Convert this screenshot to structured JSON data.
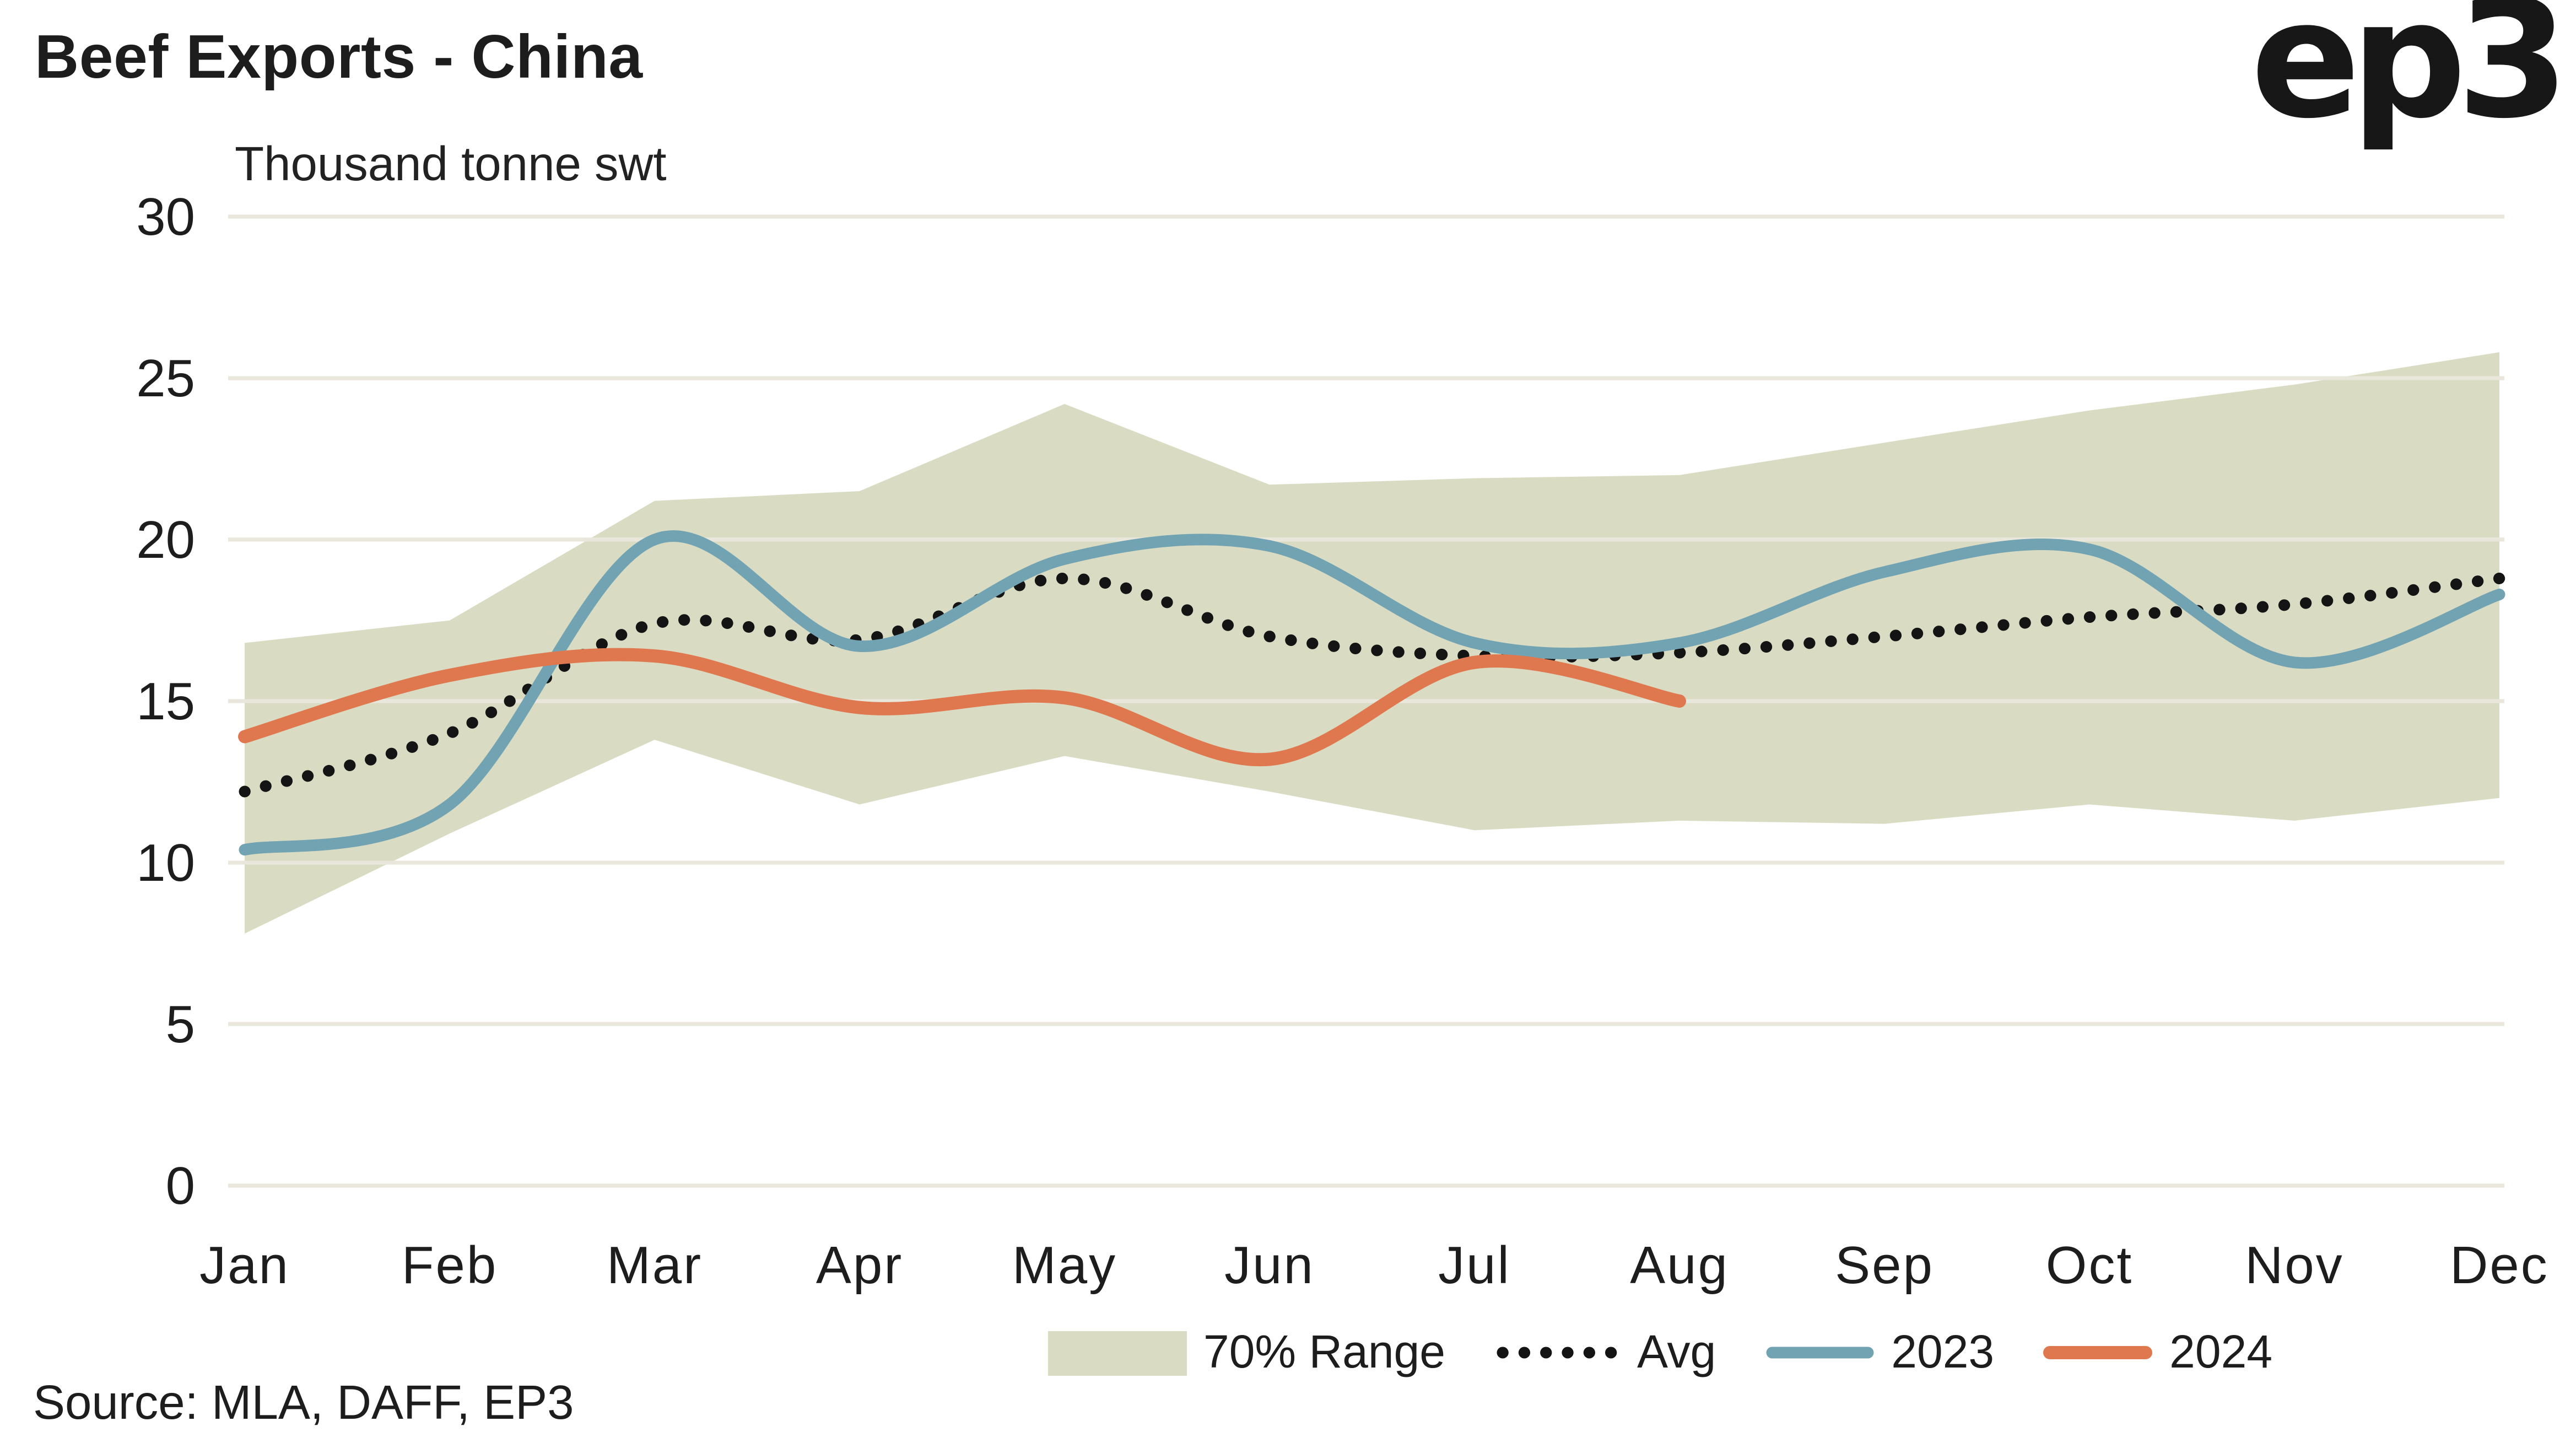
{
  "header": {
    "title": "Beef Exports - China",
    "subtitle": "Thousand tonne swt",
    "logo_text": "ep3"
  },
  "footer": {
    "source": "Source: MLA, DAFF, EP3"
  },
  "legend": {
    "items": [
      {
        "label": "70% Range"
      },
      {
        "label": "Avg"
      },
      {
        "label": "2023"
      },
      {
        "label": "2024"
      }
    ]
  },
  "colors": {
    "background": "#ffffff",
    "gridline": "#e9e6db",
    "text": "#1d1d1d",
    "band": "#d9dcc3",
    "avg": "#141414",
    "series_2023": "#72a3b2",
    "series_2024": "#e0784f"
  },
  "chart_data": {
    "type": "line",
    "title": "Beef Exports - China",
    "ylabel": "Thousand tonne swt",
    "xlabel": "",
    "categories": [
      "Jan",
      "Feb",
      "Mar",
      "Apr",
      "May",
      "Jun",
      "Jul",
      "Aug",
      "Sep",
      "Oct",
      "Nov",
      "Dec"
    ],
    "ylim": [
      0,
      30
    ],
    "y_ticks": [
      0,
      5,
      10,
      15,
      20,
      25,
      30
    ],
    "grid": "horizontal",
    "legend_position": "bottom",
    "band": {
      "name": "70% Range",
      "color": "#d9dcc3",
      "upper": [
        16.8,
        17.5,
        21.2,
        21.5,
        24.2,
        21.7,
        21.9,
        22.0,
        23.0,
        24.0,
        24.8,
        25.8
      ],
      "lower": [
        7.8,
        10.9,
        13.8,
        11.8,
        13.3,
        12.2,
        11.0,
        11.3,
        11.2,
        11.8,
        11.3,
        12.0
      ]
    },
    "series": [
      {
        "name": "Avg",
        "style": "dotted",
        "color": "#141414",
        "values": [
          12.2,
          14.0,
          17.4,
          16.9,
          18.8,
          17.0,
          16.4,
          16.5,
          17.0,
          17.6,
          18.0,
          18.8
        ]
      },
      {
        "name": "2023",
        "style": "solid",
        "color": "#72a3b2",
        "values": [
          10.4,
          11.8,
          20.0,
          16.7,
          19.4,
          19.8,
          16.8,
          16.8,
          19.0,
          19.7,
          16.2,
          18.3
        ]
      },
      {
        "name": "2024",
        "style": "solid",
        "color": "#e0784f",
        "values": [
          13.9,
          15.8,
          16.4,
          14.8,
          15.1,
          13.2,
          16.2,
          15.0
        ]
      }
    ]
  }
}
